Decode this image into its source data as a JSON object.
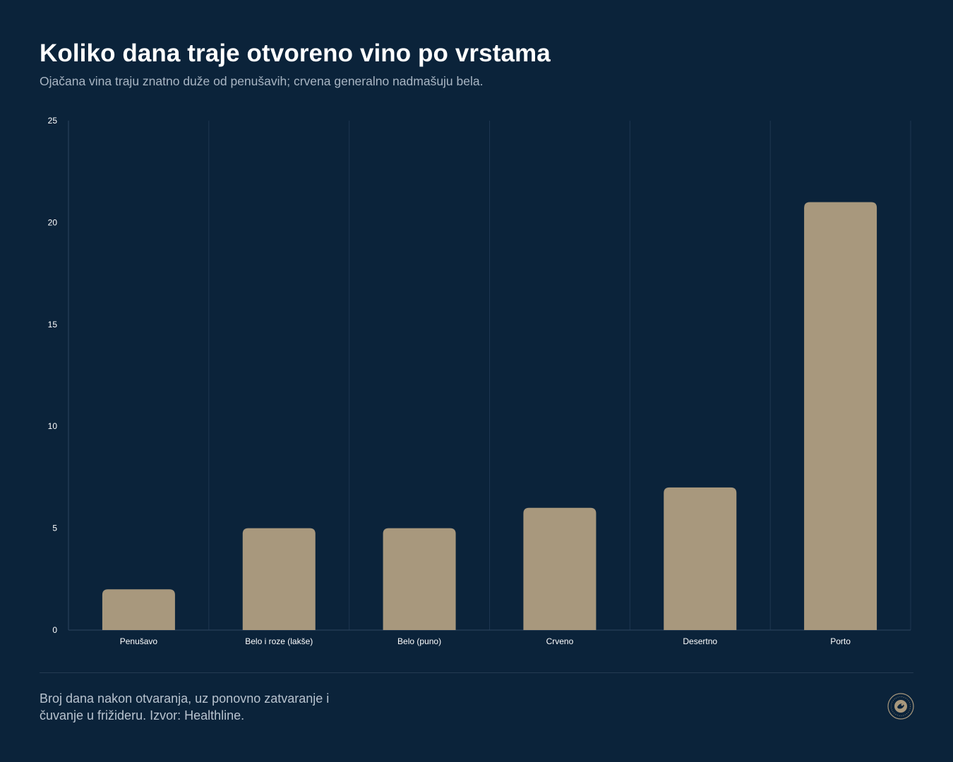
{
  "header": {
    "title": "Koliko dana traje otvoreno vino po vrstama",
    "subtitle": "Ojačana vina traju znatno duže od penušavih; crvena generalno nadmašuju bela."
  },
  "footer": {
    "note": "Broj dana nakon otvaranja, uz ponovno zatvaranje i čuvanje u frižideru. Izvor: Healthline."
  },
  "colors": {
    "background": "#0b233a",
    "bar": "#a8987d",
    "grid": "#1e3650",
    "axis": "#2c4560",
    "tick_text": "#ffffff"
  },
  "chart_data": {
    "type": "bar",
    "categories": [
      "Penušavo",
      "Belo i roze (lakše)",
      "Belo (puno)",
      "Crveno",
      "Desertno",
      "Porto"
    ],
    "values": [
      2,
      5,
      5,
      6,
      7,
      21
    ],
    "yticks": [
      0,
      5,
      10,
      15,
      20,
      25
    ],
    "ylim": [
      0,
      25
    ],
    "title": "Koliko dana traje otvoreno vino po vrstama",
    "xlabel": "",
    "ylabel": "",
    "grid": "vertical separators between categories",
    "legend": "none"
  }
}
